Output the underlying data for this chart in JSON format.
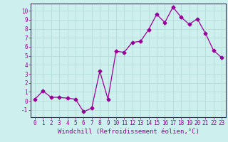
{
  "x": [
    0,
    1,
    2,
    3,
    4,
    5,
    6,
    7,
    8,
    9,
    10,
    11,
    12,
    13,
    14,
    15,
    16,
    17,
    18,
    19,
    20,
    21,
    22,
    23
  ],
  "y": [
    0.2,
    1.1,
    0.4,
    0.4,
    0.3,
    0.2,
    -1.2,
    -0.8,
    3.3,
    0.2,
    5.5,
    5.4,
    6.5,
    6.6,
    7.9,
    9.6,
    8.7,
    10.4,
    9.3,
    8.5,
    9.1,
    7.5,
    5.6,
    4.8
  ],
  "line_color": "#990099",
  "marker": "D",
  "markersize": 2.5,
  "linewidth": 0.9,
  "xlim": [
    -0.5,
    23.5
  ],
  "ylim": [
    -1.8,
    10.8
  ],
  "yticks": [
    -1,
    0,
    1,
    2,
    3,
    4,
    5,
    6,
    7,
    8,
    9,
    10
  ],
  "xticks": [
    0,
    1,
    2,
    3,
    4,
    5,
    6,
    7,
    8,
    9,
    10,
    11,
    12,
    13,
    14,
    15,
    16,
    17,
    18,
    19,
    20,
    21,
    22,
    23
  ],
  "xlabel": "Windchill (Refroidissement éolien,°C)",
  "xlabel_fontsize": 6.5,
  "tick_fontsize": 5.5,
  "background_color": "#cdf0ee",
  "grid_color": "#b0d8d0",
  "border_color": "#880088"
}
